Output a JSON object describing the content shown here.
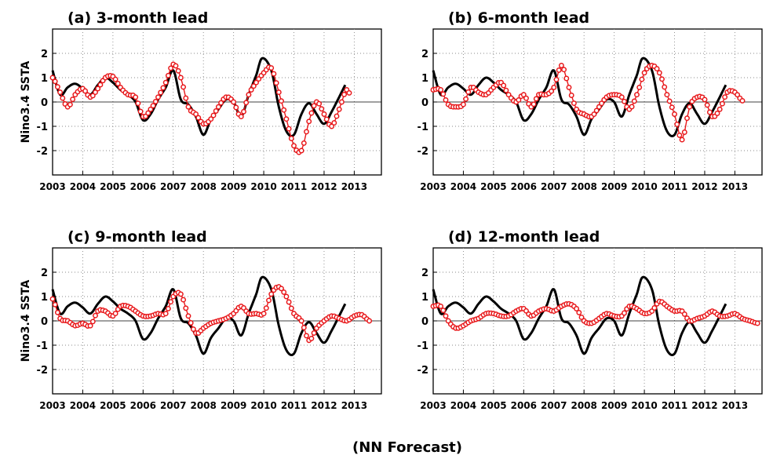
{
  "caption": "(NN Forecast)",
  "colors": {
    "observed": "#000000",
    "forecast": "#e8171a",
    "grid": "#888888"
  },
  "chart_data": [
    {
      "type": "line",
      "title": "(a) 3-month lead",
      "ylabel": "Nino3.4 SSTA",
      "xlim": [
        2003,
        2013.9
      ],
      "ylim": [
        -3,
        3
      ],
      "xticks": [
        "2003",
        "2004",
        "2005",
        "2006",
        "2007",
        "2008",
        "2009",
        "2010",
        "2011",
        "2012",
        "2013"
      ],
      "yticks": [
        "2",
        "1",
        "0",
        "-1",
        "-2"
      ],
      "grid": true,
      "series": [
        {
          "style": "solid-black",
          "x": [
            2003.0,
            2003.25,
            2003.5,
            2003.75,
            2004.0,
            2004.25,
            2004.5,
            2004.75,
            2005.0,
            2005.25,
            2005.5,
            2005.75,
            2006.0,
            2006.25,
            2006.5,
            2006.75,
            2007.0,
            2007.25,
            2007.5,
            2007.75,
            2008.0,
            2008.25,
            2008.5,
            2008.75,
            2009.0,
            2009.25,
            2009.5,
            2009.75,
            2009.95,
            2010.25,
            2010.5,
            2010.75,
            2011.0,
            2011.25,
            2011.5,
            2011.75,
            2012.0,
            2012.25,
            2012.5,
            2012.7
          ],
          "y": [
            1.3,
            0.3,
            0.6,
            0.75,
            0.55,
            0.3,
            0.7,
            1.0,
            0.8,
            0.5,
            0.3,
            0.0,
            -0.75,
            -0.5,
            0.1,
            0.6,
            1.3,
            0.1,
            -0.1,
            -0.6,
            -1.35,
            -0.7,
            -0.3,
            0.1,
            0.0,
            -0.6,
            0.3,
            1.1,
            1.8,
            1.3,
            -0.2,
            -1.2,
            -1.35,
            -0.5,
            -0.05,
            -0.5,
            -0.9,
            -0.4,
            0.2,
            0.7
          ]
        },
        {
          "style": "red-circles",
          "x": [
            2003.0,
            2003.25,
            2003.5,
            2003.75,
            2004.0,
            2004.25,
            2004.5,
            2004.75,
            2005.0,
            2005.25,
            2005.5,
            2005.75,
            2006.0,
            2006.25,
            2006.5,
            2006.75,
            2007.0,
            2007.25,
            2007.5,
            2007.75,
            2008.0,
            2008.25,
            2008.5,
            2008.75,
            2009.0,
            2009.25,
            2009.5,
            2009.75,
            2010.0,
            2010.25,
            2010.5,
            2010.75,
            2011.0,
            2011.25,
            2011.5,
            2011.75,
            2012.0,
            2012.25,
            2012.5,
            2012.75,
            2012.9
          ],
          "y": [
            1.0,
            0.4,
            -0.2,
            0.3,
            0.55,
            0.2,
            0.55,
            1.0,
            1.05,
            0.6,
            0.3,
            0.2,
            -0.6,
            -0.3,
            0.2,
            0.8,
            1.55,
            1.0,
            -0.2,
            -0.5,
            -0.9,
            -0.7,
            -0.2,
            0.2,
            0.0,
            -0.6,
            0.3,
            0.8,
            1.2,
            1.4,
            0.4,
            -0.7,
            -1.8,
            -2.0,
            -0.8,
            0.0,
            -0.5,
            -1.0,
            -0.3,
            0.5,
            0.2
          ]
        }
      ]
    },
    {
      "type": "line",
      "title": "(b) 6-month lead",
      "ylabel": "",
      "xlim": [
        2003,
        2013.9
      ],
      "ylim": [
        -3,
        3
      ],
      "xticks": [
        "2003",
        "2004",
        "2005",
        "2006",
        "2007",
        "2008",
        "2009",
        "2010",
        "2011",
        "2012",
        "2013"
      ],
      "yticks": [
        "2",
        "1",
        "0",
        "-1",
        "-2"
      ],
      "grid": true,
      "series": [
        {
          "style": "solid-black",
          "x": [
            2003.0,
            2003.25,
            2003.5,
            2003.75,
            2004.0,
            2004.25,
            2004.5,
            2004.75,
            2005.0,
            2005.25,
            2005.5,
            2005.75,
            2006.0,
            2006.25,
            2006.5,
            2006.75,
            2007.0,
            2007.25,
            2007.5,
            2007.75,
            2008.0,
            2008.25,
            2008.5,
            2008.75,
            2009.0,
            2009.25,
            2009.5,
            2009.75,
            2009.95,
            2010.25,
            2010.5,
            2010.75,
            2011.0,
            2011.25,
            2011.5,
            2011.75,
            2012.0,
            2012.25,
            2012.5,
            2012.7
          ],
          "y": [
            1.3,
            0.3,
            0.6,
            0.75,
            0.55,
            0.3,
            0.7,
            1.0,
            0.8,
            0.5,
            0.3,
            0.0,
            -0.75,
            -0.5,
            0.1,
            0.6,
            1.3,
            0.1,
            -0.1,
            -0.6,
            -1.35,
            -0.7,
            -0.3,
            0.1,
            0.0,
            -0.6,
            0.3,
            1.1,
            1.8,
            1.3,
            -0.2,
            -1.2,
            -1.35,
            -0.5,
            -0.05,
            -0.5,
            -0.9,
            -0.4,
            0.2,
            0.7
          ]
        },
        {
          "style": "red-circles",
          "x": [
            2003.0,
            2003.25,
            2003.5,
            2003.75,
            2004.0,
            2004.25,
            2004.5,
            2004.75,
            2005.0,
            2005.25,
            2005.5,
            2005.75,
            2006.0,
            2006.25,
            2006.5,
            2006.75,
            2007.0,
            2007.25,
            2007.5,
            2007.75,
            2008.0,
            2008.25,
            2008.5,
            2008.75,
            2009.0,
            2009.25,
            2009.5,
            2009.75,
            2010.0,
            2010.25,
            2010.5,
            2010.75,
            2011.0,
            2011.25,
            2011.5,
            2011.75,
            2012.0,
            2012.25,
            2012.5,
            2012.75,
            2013.0,
            2013.25
          ],
          "y": [
            0.5,
            0.5,
            -0.1,
            -0.2,
            -0.1,
            0.6,
            0.4,
            0.3,
            0.6,
            0.8,
            0.3,
            0.0,
            0.3,
            -0.2,
            0.3,
            0.3,
            0.6,
            1.5,
            0.6,
            -0.3,
            -0.5,
            -0.6,
            -0.2,
            0.2,
            0.3,
            0.2,
            -0.3,
            0.3,
            1.2,
            1.5,
            1.2,
            0.3,
            -0.5,
            -1.55,
            -0.2,
            0.2,
            0.1,
            -0.6,
            -0.3,
            0.4,
            0.4,
            0.05
          ]
        }
      ]
    },
    {
      "type": "line",
      "title": "(c) 9-month lead",
      "ylabel": "Nino3.4 SSTA",
      "xlim": [
        2003,
        2013.9
      ],
      "ylim": [
        -3,
        3
      ],
      "xticks": [
        "2003",
        "2004",
        "2005",
        "2006",
        "2007",
        "2008",
        "2009",
        "2010",
        "2011",
        "2012",
        "2013"
      ],
      "yticks": [
        "2",
        "1",
        "0",
        "-1",
        "-2"
      ],
      "grid": true,
      "series": [
        {
          "style": "solid-black",
          "x": [
            2003.0,
            2003.25,
            2003.5,
            2003.75,
            2004.0,
            2004.25,
            2004.5,
            2004.75,
            2005.0,
            2005.25,
            2005.5,
            2005.75,
            2006.0,
            2006.25,
            2006.5,
            2006.75,
            2007.0,
            2007.25,
            2007.5,
            2007.75,
            2008.0,
            2008.25,
            2008.5,
            2008.75,
            2009.0,
            2009.25,
            2009.5,
            2009.75,
            2009.95,
            2010.25,
            2010.5,
            2010.75,
            2011.0,
            2011.25,
            2011.5,
            2011.75,
            2012.0,
            2012.25,
            2012.5,
            2012.7
          ],
          "y": [
            1.3,
            0.3,
            0.6,
            0.75,
            0.55,
            0.3,
            0.7,
            1.0,
            0.8,
            0.5,
            0.3,
            0.0,
            -0.75,
            -0.5,
            0.1,
            0.6,
            1.3,
            0.1,
            -0.1,
            -0.6,
            -1.35,
            -0.7,
            -0.3,
            0.1,
            0.0,
            -0.6,
            0.3,
            1.1,
            1.8,
            1.3,
            -0.2,
            -1.2,
            -1.35,
            -0.5,
            -0.05,
            -0.5,
            -0.9,
            -0.4,
            0.2,
            0.7
          ]
        },
        {
          "style": "red-circles",
          "x": [
            2003.0,
            2003.25,
            2003.5,
            2003.75,
            2004.0,
            2004.25,
            2004.5,
            2004.75,
            2005.0,
            2005.25,
            2005.5,
            2005.75,
            2006.0,
            2006.25,
            2006.5,
            2006.75,
            2007.0,
            2007.25,
            2007.5,
            2007.75,
            2008.0,
            2008.25,
            2008.5,
            2008.75,
            2009.0,
            2009.25,
            2009.5,
            2009.75,
            2010.0,
            2010.25,
            2010.5,
            2010.75,
            2011.0,
            2011.25,
            2011.5,
            2011.75,
            2012.0,
            2012.25,
            2012.5,
            2012.75,
            2013.0,
            2013.25,
            2013.5
          ],
          "y": [
            0.9,
            0.1,
            0.0,
            -0.2,
            -0.1,
            -0.2,
            0.4,
            0.4,
            0.2,
            0.6,
            0.6,
            0.4,
            0.2,
            0.2,
            0.3,
            0.3,
            1.0,
            1.1,
            0.2,
            -0.5,
            -0.3,
            -0.1,
            0.0,
            0.1,
            0.3,
            0.6,
            0.3,
            0.3,
            0.3,
            1.1,
            1.4,
            1.0,
            0.3,
            0.0,
            -0.8,
            -0.3,
            0.0,
            0.2,
            0.1,
            0.0,
            0.2,
            0.25,
            0.0
          ]
        }
      ]
    },
    {
      "type": "line",
      "title": "(d) 12-month lead",
      "ylabel": "",
      "xlim": [
        2003,
        2013.9
      ],
      "ylim": [
        -3,
        3
      ],
      "xticks": [
        "2003",
        "2004",
        "2005",
        "2006",
        "2007",
        "2008",
        "2009",
        "2010",
        "2011",
        "2012",
        "2013"
      ],
      "yticks": [
        "2",
        "1",
        "0",
        "-1",
        "-2"
      ],
      "grid": true,
      "series": [
        {
          "style": "solid-black",
          "x": [
            2003.0,
            2003.25,
            2003.5,
            2003.75,
            2004.0,
            2004.25,
            2004.5,
            2004.75,
            2005.0,
            2005.25,
            2005.5,
            2005.75,
            2006.0,
            2006.25,
            2006.5,
            2006.75,
            2007.0,
            2007.25,
            2007.5,
            2007.75,
            2008.0,
            2008.25,
            2008.5,
            2008.75,
            2009.0,
            2009.25,
            2009.5,
            2009.75,
            2009.95,
            2010.25,
            2010.5,
            2010.75,
            2011.0,
            2011.25,
            2011.5,
            2011.75,
            2012.0,
            2012.25,
            2012.5,
            2012.7
          ],
          "y": [
            1.3,
            0.3,
            0.6,
            0.75,
            0.55,
            0.3,
            0.7,
            1.0,
            0.8,
            0.5,
            0.3,
            0.0,
            -0.75,
            -0.5,
            0.1,
            0.6,
            1.3,
            0.1,
            -0.1,
            -0.6,
            -1.35,
            -0.7,
            -0.3,
            0.1,
            0.0,
            -0.6,
            0.3,
            1.1,
            1.8,
            1.3,
            -0.2,
            -1.2,
            -1.35,
            -0.5,
            -0.05,
            -0.5,
            -0.9,
            -0.4,
            0.2,
            0.7
          ]
        },
        {
          "style": "red-circles",
          "x": [
            2003.0,
            2003.25,
            2003.5,
            2003.75,
            2004.0,
            2004.25,
            2004.5,
            2004.75,
            2005.0,
            2005.25,
            2005.5,
            2005.75,
            2006.0,
            2006.25,
            2006.5,
            2006.75,
            2007.0,
            2007.25,
            2007.5,
            2007.75,
            2008.0,
            2008.25,
            2008.5,
            2008.75,
            2009.0,
            2009.25,
            2009.5,
            2009.75,
            2010.0,
            2010.25,
            2010.5,
            2010.75,
            2011.0,
            2011.25,
            2011.5,
            2011.75,
            2012.0,
            2012.25,
            2012.5,
            2012.75,
            2013.0,
            2013.25,
            2013.5,
            2013.75
          ],
          "y": [
            0.6,
            0.6,
            0.0,
            -0.3,
            -0.2,
            0.0,
            0.1,
            0.3,
            0.3,
            0.2,
            0.2,
            0.4,
            0.5,
            0.2,
            0.4,
            0.5,
            0.4,
            0.6,
            0.7,
            0.5,
            0.0,
            -0.1,
            0.1,
            0.3,
            0.2,
            0.2,
            0.6,
            0.5,
            0.3,
            0.4,
            0.8,
            0.6,
            0.4,
            0.4,
            0.0,
            0.1,
            0.2,
            0.4,
            0.2,
            0.2,
            0.3,
            0.1,
            0.0,
            -0.1
          ]
        }
      ]
    }
  ]
}
